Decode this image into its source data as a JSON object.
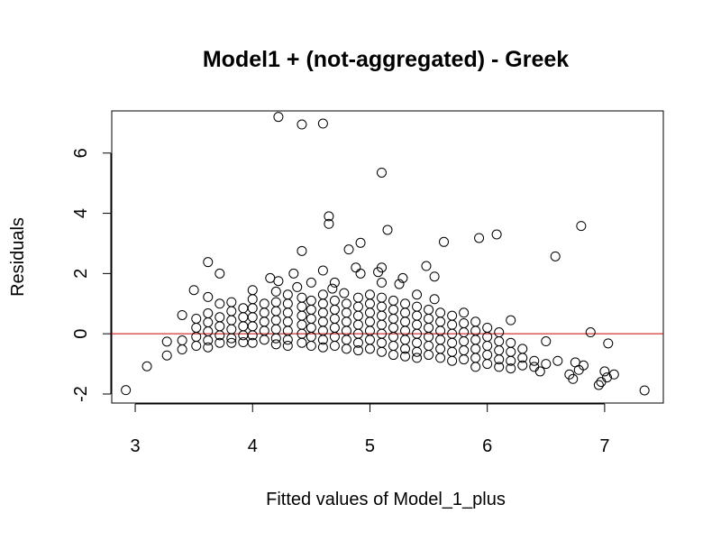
{
  "chart_data": {
    "type": "scatter",
    "title": "Model1 + (not-aggregated) - Greek",
    "xlabel": "Fitted values of Model_1_plus",
    "ylabel": "Residuals",
    "xlim": [
      2.8,
      7.5
    ],
    "ylim": [
      -2.3,
      7.4
    ],
    "xticks": [
      3,
      4,
      5,
      6,
      7
    ],
    "yticks": [
      -2,
      0,
      2,
      4,
      6
    ],
    "grid": false,
    "point_color": "#000000",
    "reference_line": {
      "y": 0,
      "color": "#cc0000"
    },
    "points": [
      [
        2.92,
        -1.87
      ],
      [
        3.1,
        -1.08
      ],
      [
        3.27,
        -0.72
      ],
      [
        3.27,
        -0.26
      ],
      [
        3.4,
        0.62
      ],
      [
        3.4,
        -0.22
      ],
      [
        3.4,
        -0.52
      ],
      [
        3.5,
        1.45
      ],
      [
        3.52,
        0.5
      ],
      [
        3.52,
        0.2
      ],
      [
        3.52,
        -0.1
      ],
      [
        3.52,
        -0.4
      ],
      [
        3.62,
        2.38
      ],
      [
        3.62,
        1.22
      ],
      [
        3.62,
        0.68
      ],
      [
        3.62,
        0.38
      ],
      [
        3.62,
        0.08
      ],
      [
        3.62,
        -0.22
      ],
      [
        3.62,
        -0.45
      ],
      [
        3.72,
        2.0
      ],
      [
        3.72,
        1.0
      ],
      [
        3.72,
        0.55
      ],
      [
        3.72,
        0.25
      ],
      [
        3.72,
        -0.05
      ],
      [
        3.72,
        -0.3
      ],
      [
        3.82,
        1.05
      ],
      [
        3.82,
        0.75
      ],
      [
        3.82,
        0.45
      ],
      [
        3.82,
        0.15
      ],
      [
        3.82,
        -0.15
      ],
      [
        3.82,
        -0.3
      ],
      [
        3.92,
        0.85
      ],
      [
        3.92,
        0.55
      ],
      [
        3.92,
        0.25
      ],
      [
        3.92,
        -0.05
      ],
      [
        3.92,
        -0.28
      ],
      [
        4.0,
        1.45
      ],
      [
        4.0,
        1.15
      ],
      [
        4.0,
        0.85
      ],
      [
        4.0,
        0.55
      ],
      [
        4.0,
        0.25
      ],
      [
        4.0,
        -0.05
      ],
      [
        4.0,
        -0.3
      ],
      [
        4.1,
        1.0
      ],
      [
        4.1,
        0.7
      ],
      [
        4.1,
        0.4
      ],
      [
        4.1,
        0.1
      ],
      [
        4.1,
        -0.2
      ],
      [
        4.15,
        1.85
      ],
      [
        4.2,
        1.4
      ],
      [
        4.2,
        1.05
      ],
      [
        4.2,
        0.75
      ],
      [
        4.2,
        0.45
      ],
      [
        4.2,
        0.15
      ],
      [
        4.2,
        -0.15
      ],
      [
        4.2,
        -0.35
      ],
      [
        4.22,
        7.2
      ],
      [
        4.22,
        1.75
      ],
      [
        4.3,
        1.3
      ],
      [
        4.3,
        1.0
      ],
      [
        4.3,
        0.7
      ],
      [
        4.3,
        0.4
      ],
      [
        4.3,
        0.1
      ],
      [
        4.3,
        -0.2
      ],
      [
        4.3,
        -0.4
      ],
      [
        4.35,
        2.0
      ],
      [
        4.38,
        1.55
      ],
      [
        4.42,
        6.95
      ],
      [
        4.42,
        2.75
      ],
      [
        4.42,
        1.2
      ],
      [
        4.42,
        0.9
      ],
      [
        4.42,
        0.6
      ],
      [
        4.42,
        0.3
      ],
      [
        4.42,
        0.0
      ],
      [
        4.42,
        -0.3
      ],
      [
        4.5,
        1.7
      ],
      [
        4.5,
        1.1
      ],
      [
        4.5,
        0.8
      ],
      [
        4.5,
        0.5
      ],
      [
        4.5,
        0.2
      ],
      [
        4.5,
        -0.1
      ],
      [
        4.5,
        -0.4
      ],
      [
        4.6,
        6.98
      ],
      [
        4.6,
        2.1
      ],
      [
        4.6,
        1.3
      ],
      [
        4.6,
        1.0
      ],
      [
        4.6,
        0.7
      ],
      [
        4.6,
        0.4
      ],
      [
        4.6,
        0.1
      ],
      [
        4.6,
        -0.2
      ],
      [
        4.6,
        -0.45
      ],
      [
        4.65,
        3.9
      ],
      [
        4.65,
        3.65
      ],
      [
        4.68,
        1.5
      ],
      [
        4.7,
        1.7
      ],
      [
        4.7,
        1.1
      ],
      [
        4.7,
        0.8
      ],
      [
        4.7,
        0.5
      ],
      [
        4.7,
        0.2
      ],
      [
        4.7,
        -0.1
      ],
      [
        4.7,
        -0.4
      ],
      [
        4.78,
        1.35
      ],
      [
        4.8,
        1.0
      ],
      [
        4.8,
        0.7
      ],
      [
        4.8,
        0.4
      ],
      [
        4.8,
        0.1
      ],
      [
        4.8,
        -0.2
      ],
      [
        4.8,
        -0.5
      ],
      [
        4.82,
        2.8
      ],
      [
        4.88,
        2.2
      ],
      [
        4.92,
        3.02
      ],
      [
        4.92,
        2.0
      ],
      [
        4.9,
        1.2
      ],
      [
        4.9,
        0.9
      ],
      [
        4.9,
        0.6
      ],
      [
        4.9,
        0.3
      ],
      [
        4.9,
        0.0
      ],
      [
        4.9,
        -0.3
      ],
      [
        4.9,
        -0.55
      ],
      [
        5.0,
        1.3
      ],
      [
        5.0,
        1.0
      ],
      [
        5.0,
        0.7
      ],
      [
        5.0,
        0.4
      ],
      [
        5.0,
        0.1
      ],
      [
        5.0,
        -0.2
      ],
      [
        5.0,
        -0.5
      ],
      [
        5.07,
        2.05
      ],
      [
        5.1,
        5.35
      ],
      [
        5.1,
        2.2
      ],
      [
        5.1,
        1.7
      ],
      [
        5.1,
        1.2
      ],
      [
        5.1,
        0.9
      ],
      [
        5.1,
        0.6
      ],
      [
        5.1,
        0.3
      ],
      [
        5.1,
        0.0
      ],
      [
        5.1,
        -0.3
      ],
      [
        5.1,
        -0.6
      ],
      [
        5.15,
        3.45
      ],
      [
        5.2,
        1.1
      ],
      [
        5.2,
        0.8
      ],
      [
        5.2,
        0.5
      ],
      [
        5.2,
        0.2
      ],
      [
        5.2,
        -0.1
      ],
      [
        5.2,
        -0.4
      ],
      [
        5.2,
        -0.7
      ],
      [
        5.25,
        1.65
      ],
      [
        5.28,
        1.85
      ],
      [
        5.3,
        1.0
      ],
      [
        5.3,
        0.7
      ],
      [
        5.3,
        0.4
      ],
      [
        5.3,
        0.1
      ],
      [
        5.3,
        -0.2
      ],
      [
        5.3,
        -0.5
      ],
      [
        5.3,
        -0.75
      ],
      [
        5.4,
        1.3
      ],
      [
        5.4,
        0.9
      ],
      [
        5.4,
        0.6
      ],
      [
        5.4,
        0.3
      ],
      [
        5.4,
        0.0
      ],
      [
        5.4,
        -0.3
      ],
      [
        5.4,
        -0.6
      ],
      [
        5.4,
        -0.8
      ],
      [
        5.48,
        2.25
      ],
      [
        5.55,
        1.9
      ],
      [
        5.55,
        1.15
      ],
      [
        5.5,
        0.8
      ],
      [
        5.5,
        0.5
      ],
      [
        5.5,
        0.2
      ],
      [
        5.5,
        -0.1
      ],
      [
        5.5,
        -0.4
      ],
      [
        5.5,
        -0.7
      ],
      [
        5.6,
        0.7
      ],
      [
        5.6,
        0.4
      ],
      [
        5.6,
        0.1
      ],
      [
        5.6,
        -0.2
      ],
      [
        5.6,
        -0.5
      ],
      [
        5.6,
        -0.8
      ],
      [
        5.63,
        3.05
      ],
      [
        5.7,
        0.6
      ],
      [
        5.7,
        0.3
      ],
      [
        5.7,
        0.0
      ],
      [
        5.7,
        -0.3
      ],
      [
        5.7,
        -0.6
      ],
      [
        5.7,
        -0.9
      ],
      [
        5.8,
        0.7
      ],
      [
        5.8,
        0.35
      ],
      [
        5.8,
        0.05
      ],
      [
        5.8,
        -0.25
      ],
      [
        5.8,
        -0.55
      ],
      [
        5.8,
        -0.85
      ],
      [
        5.9,
        0.4
      ],
      [
        5.9,
        0.1
      ],
      [
        5.9,
        -0.2
      ],
      [
        5.9,
        -0.5
      ],
      [
        5.9,
        -0.8
      ],
      [
        5.9,
        -1.1
      ],
      [
        5.93,
        3.18
      ],
      [
        6.0,
        0.2
      ],
      [
        6.0,
        -0.1
      ],
      [
        6.0,
        -0.4
      ],
      [
        6.0,
        -0.7
      ],
      [
        6.0,
        -1.0
      ],
      [
        6.08,
        3.3
      ],
      [
        6.1,
        0.05
      ],
      [
        6.1,
        -0.25
      ],
      [
        6.1,
        -0.55
      ],
      [
        6.1,
        -0.85
      ],
      [
        6.1,
        -1.1
      ],
      [
        6.2,
        0.45
      ],
      [
        6.2,
        -0.3
      ],
      [
        6.2,
        -0.6
      ],
      [
        6.2,
        -0.9
      ],
      [
        6.2,
        -1.15
      ],
      [
        6.3,
        -0.5
      ],
      [
        6.3,
        -0.8
      ],
      [
        6.3,
        -1.05
      ],
      [
        6.4,
        -0.9
      ],
      [
        6.4,
        -1.1
      ],
      [
        6.45,
        -1.25
      ],
      [
        6.5,
        -1.0
      ],
      [
        6.5,
        -0.25
      ],
      [
        6.58,
        2.57
      ],
      [
        6.6,
        -0.9
      ],
      [
        6.7,
        -1.35
      ],
      [
        6.73,
        -1.5
      ],
      [
        6.75,
        -0.95
      ],
      [
        6.78,
        -1.2
      ],
      [
        6.8,
        3.58
      ],
      [
        6.82,
        -1.05
      ],
      [
        6.88,
        0.05
      ],
      [
        6.95,
        -1.7
      ],
      [
        6.97,
        -1.6
      ],
      [
        7.0,
        -1.25
      ],
      [
        7.02,
        -1.45
      ],
      [
        7.03,
        -0.32
      ],
      [
        7.08,
        -1.35
      ],
      [
        7.34,
        -1.88
      ]
    ]
  }
}
